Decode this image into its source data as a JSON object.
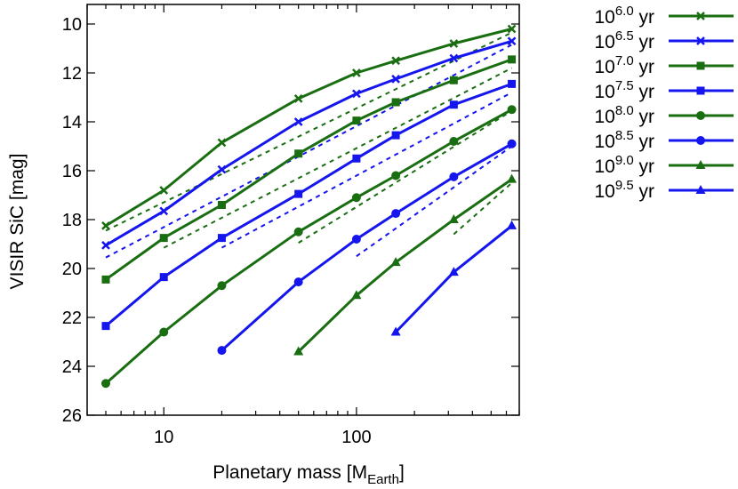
{
  "chart_data": {
    "type": "line",
    "xlabel": "Planetary mass [M",
    "xlabel_sub": "Earth",
    "xlabel_end": "]",
    "ylabel": "VISIR SiC [mag]",
    "x_scale": "log",
    "xlim": [
      4,
      700
    ],
    "ylim": [
      26,
      9.2
    ],
    "y_inverted": true,
    "x_ticks": [
      10,
      100
    ],
    "x_tick_labels": [
      "10",
      "100"
    ],
    "y_ticks": [
      10,
      12,
      14,
      16,
      18,
      20,
      22,
      24,
      26
    ],
    "y_tick_labels": [
      "10",
      "12",
      "14",
      "16",
      "18",
      "20",
      "22",
      "24",
      "26"
    ],
    "grid": false,
    "legend_position": "outside-right",
    "series": [
      {
        "name_base": "10",
        "name_exp": "6.0",
        "name_unit": "yr",
        "color": "#1a6e12",
        "marker": "x",
        "x": [
          5,
          10,
          20,
          50,
          100,
          160,
          320,
          640
        ],
        "y": [
          18.25,
          16.8,
          14.85,
          13.05,
          12.0,
          11.5,
          10.8,
          10.2
        ]
      },
      {
        "name_base": "10",
        "name_exp": "6.5",
        "name_unit": "yr",
        "color": "#1515ee",
        "marker": "x",
        "x": [
          5,
          10,
          20,
          50,
          100,
          160,
          320,
          640
        ],
        "y": [
          19.05,
          17.65,
          15.95,
          14.0,
          12.85,
          12.25,
          11.4,
          10.7
        ]
      },
      {
        "name_base": "10",
        "name_exp": "7.0",
        "name_unit": "yr",
        "color": "#1a6e12",
        "marker": "square",
        "x": [
          5,
          10,
          20,
          50,
          100,
          160,
          320,
          640
        ],
        "y": [
          20.45,
          18.75,
          17.4,
          15.3,
          13.95,
          13.2,
          12.3,
          11.45
        ]
      },
      {
        "name_base": "10",
        "name_exp": "7.5",
        "name_unit": "yr",
        "color": "#1515ee",
        "marker": "square",
        "x": [
          5,
          10,
          20,
          50,
          100,
          160,
          320,
          640
        ],
        "y": [
          22.35,
          20.35,
          18.75,
          16.95,
          15.5,
          14.55,
          13.3,
          12.45
        ]
      },
      {
        "name_base": "10",
        "name_exp": "8.0",
        "name_unit": "yr",
        "color": "#1a6e12",
        "marker": "circle",
        "x": [
          5,
          10,
          20,
          50,
          100,
          160,
          320,
          640
        ],
        "y": [
          24.7,
          22.6,
          20.7,
          18.5,
          17.1,
          16.2,
          14.8,
          13.5
        ]
      },
      {
        "name_base": "10",
        "name_exp": "8.5",
        "name_unit": "yr",
        "color": "#1515ee",
        "marker": "circle",
        "x": [
          20,
          50,
          100,
          160,
          320,
          640
        ],
        "y": [
          23.35,
          20.55,
          18.8,
          17.75,
          16.25,
          14.9
        ]
      },
      {
        "name_base": "10",
        "name_exp": "9.0",
        "name_unit": "yr",
        "color": "#1a6e12",
        "marker": "triangle",
        "x": [
          50,
          100,
          160,
          320,
          640
        ],
        "y": [
          23.4,
          21.1,
          19.75,
          18.0,
          16.35
        ]
      },
      {
        "name_base": "10",
        "name_exp": "9.5",
        "name_unit": "yr",
        "color": "#1515ee",
        "marker": "triangle",
        "x": [
          160,
          320,
          640
        ],
        "y": [
          22.6,
          20.15,
          18.25
        ]
      }
    ],
    "fits": [
      {
        "color": "#1a6e12",
        "x": [
          5,
          640
        ],
        "y": [
          18.45,
          10.35
        ]
      },
      {
        "color": "#1515ee",
        "x": [
          5,
          640
        ],
        "y": [
          19.55,
          10.85
        ]
      },
      {
        "color": "#1a6e12",
        "x": [
          10,
          640
        ],
        "y": [
          19.15,
          11.8
        ]
      },
      {
        "color": "#1515ee",
        "x": [
          20,
          640
        ],
        "y": [
          19.15,
          12.8
        ]
      },
      {
        "color": "#1a6e12",
        "x": [
          50,
          640
        ],
        "y": [
          18.95,
          13.55
        ]
      },
      {
        "color": "#1515ee",
        "x": [
          100,
          640
        ],
        "y": [
          19.5,
          15.0
        ]
      },
      {
        "color": "#1a6e12",
        "x": [
          320,
          640
        ],
        "y": [
          18.6,
          16.5
        ]
      }
    ]
  }
}
